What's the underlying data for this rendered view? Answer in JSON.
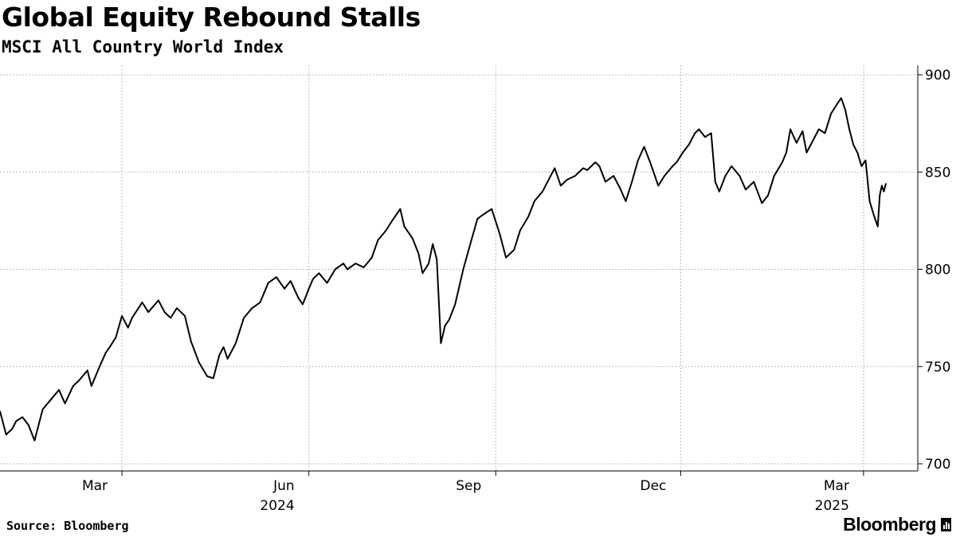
{
  "header": {
    "title": "Global Equity Rebound Stalls",
    "subtitle": "MSCI All Country World Index"
  },
  "footer": {
    "source": "Source: Bloomberg",
    "brand": "Bloomberg"
  },
  "colors": {
    "line": "#000000",
    "grid": "#bbbbbb",
    "axis": "#000000"
  },
  "chart_data": {
    "type": "line",
    "title": "Global Equity Rebound Stalls",
    "subtitle": "MSCI All Country World Index",
    "xlabel": "",
    "ylabel": "",
    "ylim": [
      700,
      900
    ],
    "y_ticks": [
      700,
      750,
      800,
      850,
      900
    ],
    "y_axis_side": "right",
    "grid": true,
    "x_range": [
      "2024-01-01",
      "2025-03-12"
    ],
    "x_ticks": [
      {
        "date": "2024-03-01",
        "label": "Mar"
      },
      {
        "date": "2024-06-01",
        "label": "Jun"
      },
      {
        "date": "2024-09-01",
        "label": "Sep"
      },
      {
        "date": "2024-12-01",
        "label": "Dec"
      },
      {
        "date": "2025-03-01",
        "label": "Mar"
      }
    ],
    "x_year_labels": [
      {
        "date": "2024-06-01",
        "label": "2024"
      },
      {
        "date": "2025-03-01",
        "label": "2025"
      }
    ],
    "series": [
      {
        "points": [
          [
            "2024-01-01",
            727
          ],
          [
            "2024-01-04",
            715
          ],
          [
            "2024-01-07",
            718
          ],
          [
            "2024-01-09",
            722
          ],
          [
            "2024-01-12",
            724
          ],
          [
            "2024-01-15",
            720
          ],
          [
            "2024-01-18",
            712
          ],
          [
            "2024-01-22",
            728
          ],
          [
            "2024-01-26",
            733
          ],
          [
            "2024-01-30",
            738
          ],
          [
            "2024-02-02",
            731
          ],
          [
            "2024-02-06",
            740
          ],
          [
            "2024-02-09",
            743
          ],
          [
            "2024-02-13",
            748
          ],
          [
            "2024-02-15",
            740
          ],
          [
            "2024-02-19",
            750
          ],
          [
            "2024-02-22",
            757
          ],
          [
            "2024-02-24",
            760
          ],
          [
            "2024-02-27",
            765
          ],
          [
            "2024-03-01",
            776
          ],
          [
            "2024-03-04",
            770
          ],
          [
            "2024-03-06",
            775
          ],
          [
            "2024-03-11",
            783
          ],
          [
            "2024-03-14",
            778
          ],
          [
            "2024-03-19",
            784
          ],
          [
            "2024-03-22",
            778
          ],
          [
            "2024-03-25",
            775
          ],
          [
            "2024-03-28",
            780
          ],
          [
            "2024-04-01",
            776
          ],
          [
            "2024-04-04",
            763
          ],
          [
            "2024-04-08",
            752
          ],
          [
            "2024-04-12",
            745
          ],
          [
            "2024-04-15",
            744
          ],
          [
            "2024-04-18",
            756
          ],
          [
            "2024-04-20",
            760
          ],
          [
            "2024-04-22",
            754
          ],
          [
            "2024-04-26",
            762
          ],
          [
            "2024-04-30",
            775
          ],
          [
            "2024-05-04",
            780
          ],
          [
            "2024-05-08",
            783
          ],
          [
            "2024-05-12",
            793
          ],
          [
            "2024-05-16",
            796
          ],
          [
            "2024-05-20",
            790
          ],
          [
            "2024-05-23",
            794
          ],
          [
            "2024-05-27",
            785
          ],
          [
            "2024-05-29",
            782
          ],
          [
            "2024-06-01",
            790
          ],
          [
            "2024-06-03",
            795
          ],
          [
            "2024-06-06",
            798
          ],
          [
            "2024-06-10",
            793
          ],
          [
            "2024-06-14",
            800
          ],
          [
            "2024-06-18",
            803
          ],
          [
            "2024-06-20",
            800
          ],
          [
            "2024-06-24",
            803
          ],
          [
            "2024-06-28",
            801
          ],
          [
            "2024-07-02",
            806
          ],
          [
            "2024-07-05",
            815
          ],
          [
            "2024-07-09",
            820
          ],
          [
            "2024-07-12",
            825
          ],
          [
            "2024-07-16",
            831
          ],
          [
            "2024-07-18",
            822
          ],
          [
            "2024-07-22",
            816
          ],
          [
            "2024-07-25",
            808
          ],
          [
            "2024-07-27",
            798
          ],
          [
            "2024-07-30",
            803
          ],
          [
            "2024-08-01",
            813
          ],
          [
            "2024-08-03",
            805
          ],
          [
            "2024-08-05",
            762
          ],
          [
            "2024-08-07",
            771
          ],
          [
            "2024-08-09",
            774
          ],
          [
            "2024-08-12",
            782
          ],
          [
            "2024-08-16",
            800
          ],
          [
            "2024-08-20",
            815
          ],
          [
            "2024-08-23",
            826
          ],
          [
            "2024-08-27",
            829
          ],
          [
            "2024-08-30",
            831
          ],
          [
            "2024-09-03",
            818
          ],
          [
            "2024-09-06",
            806
          ],
          [
            "2024-09-10",
            810
          ],
          [
            "2024-09-13",
            820
          ],
          [
            "2024-09-17",
            827
          ],
          [
            "2024-09-20",
            835
          ],
          [
            "2024-09-24",
            840
          ],
          [
            "2024-09-28",
            848
          ],
          [
            "2024-09-30",
            852
          ],
          [
            "2024-10-03",
            843
          ],
          [
            "2024-10-06",
            846
          ],
          [
            "2024-10-10",
            848
          ],
          [
            "2024-10-14",
            852
          ],
          [
            "2024-10-16",
            851
          ],
          [
            "2024-10-20",
            855
          ],
          [
            "2024-10-22",
            853
          ],
          [
            "2024-10-25",
            845
          ],
          [
            "2024-10-29",
            848
          ],
          [
            "2024-11-01",
            842
          ],
          [
            "2024-11-04",
            835
          ],
          [
            "2024-11-07",
            845
          ],
          [
            "2024-11-10",
            856
          ],
          [
            "2024-11-13",
            863
          ],
          [
            "2024-11-16",
            855
          ],
          [
            "2024-11-20",
            843
          ],
          [
            "2024-11-23",
            848
          ],
          [
            "2024-11-27",
            853
          ],
          [
            "2024-11-29",
            855
          ],
          [
            "2024-12-02",
            860
          ],
          [
            "2024-12-05",
            864
          ],
          [
            "2024-12-08",
            870
          ],
          [
            "2024-12-10",
            872
          ],
          [
            "2024-12-13",
            868
          ],
          [
            "2024-12-16",
            870
          ],
          [
            "2024-12-18",
            845
          ],
          [
            "2024-12-20",
            840
          ],
          [
            "2024-12-23",
            848
          ],
          [
            "2024-12-26",
            853
          ],
          [
            "2024-12-30",
            848
          ],
          [
            "2025-01-02",
            841
          ],
          [
            "2025-01-06",
            845
          ],
          [
            "2025-01-10",
            834
          ],
          [
            "2025-01-13",
            838
          ],
          [
            "2025-01-16",
            848
          ],
          [
            "2025-01-20",
            855
          ],
          [
            "2025-01-22",
            860
          ],
          [
            "2025-01-24",
            872
          ],
          [
            "2025-01-27",
            865
          ],
          [
            "2025-01-30",
            871
          ],
          [
            "2025-02-01",
            860
          ],
          [
            "2025-02-04",
            866
          ],
          [
            "2025-02-07",
            872
          ],
          [
            "2025-02-10",
            870
          ],
          [
            "2025-02-13",
            880
          ],
          [
            "2025-02-16",
            885
          ],
          [
            "2025-02-18",
            888
          ],
          [
            "2025-02-20",
            882
          ],
          [
            "2025-02-22",
            872
          ],
          [
            "2025-02-24",
            864
          ],
          [
            "2025-02-26",
            860
          ],
          [
            "2025-02-28",
            853
          ],
          [
            "2025-03-02",
            856
          ],
          [
            "2025-03-04",
            835
          ],
          [
            "2025-03-06",
            828
          ],
          [
            "2025-03-08",
            822
          ],
          [
            "2025-03-09",
            838
          ],
          [
            "2025-03-10",
            843
          ],
          [
            "2025-03-11",
            840
          ],
          [
            "2025-03-12",
            844
          ]
        ]
      }
    ]
  }
}
